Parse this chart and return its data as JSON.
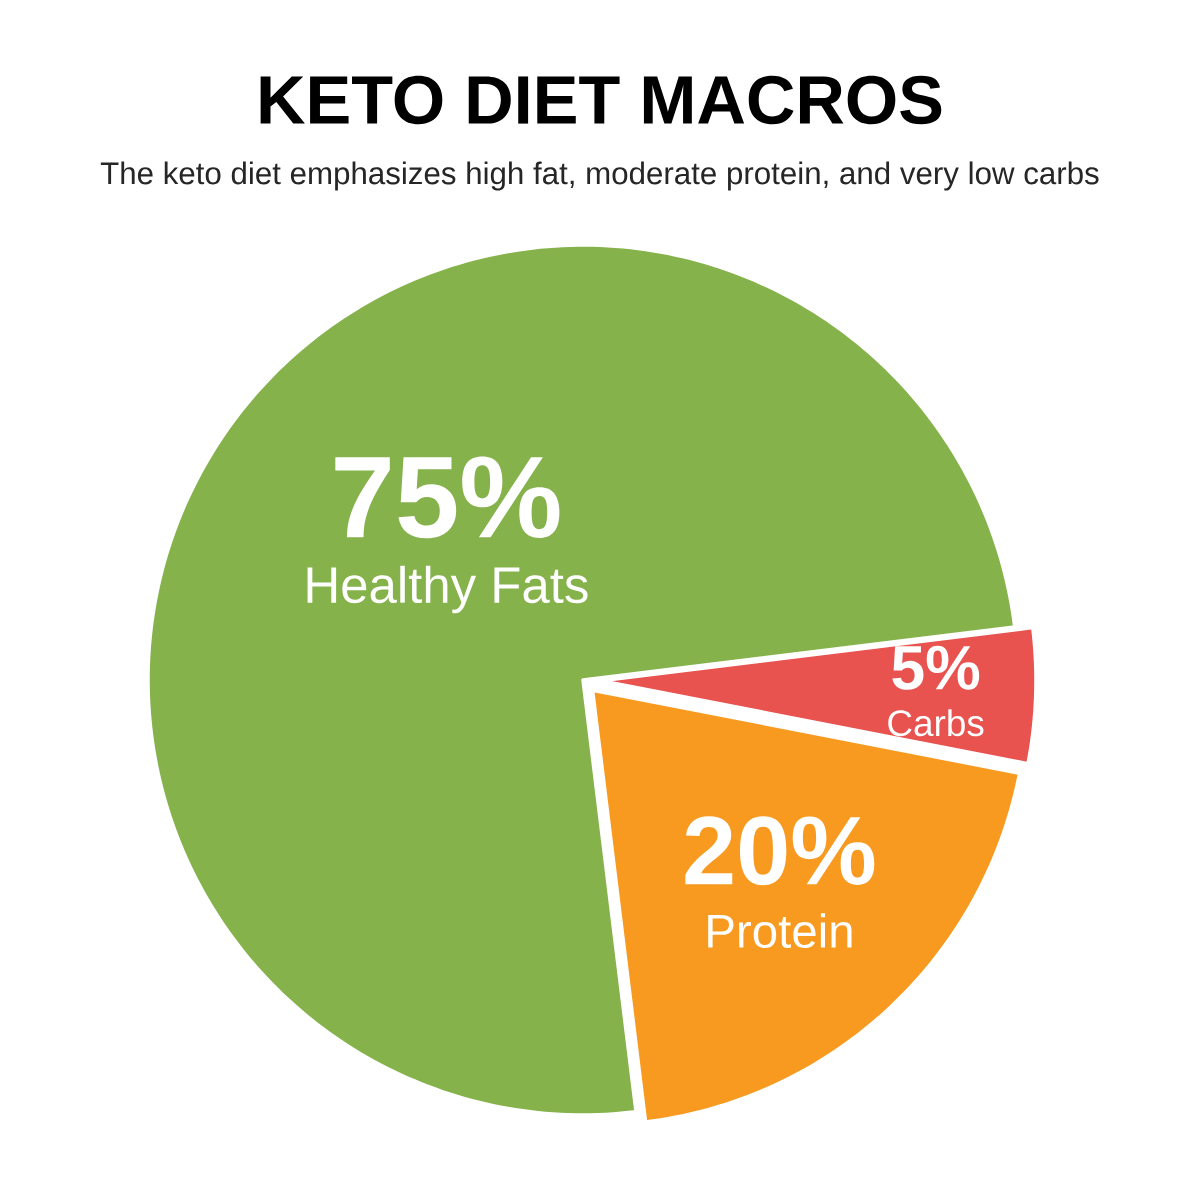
{
  "chart_data": {
    "type": "pie",
    "title": "KETO DIET MACROS",
    "subtitle": "The keto diet emphasizes high fat, moderate protein, and very low carbs",
    "categories": [
      "Healthy Fats",
      "Carbs",
      "Protein"
    ],
    "values": [
      75,
      5,
      20
    ],
    "colors": [
      "#86b24c",
      "#e8524f",
      "#f79a1f"
    ],
    "value_labels": [
      "75%",
      "5%",
      "20%"
    ]
  }
}
